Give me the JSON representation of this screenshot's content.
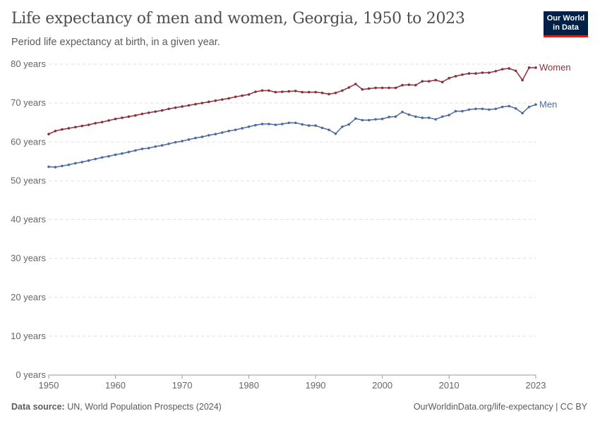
{
  "header": {
    "title": "Life expectancy of men and women, Georgia, 1950 to 2023",
    "subtitle": "Period life expectancy at birth, in a given year.",
    "logo": "Our World in Data"
  },
  "footer": {
    "source_label": "Data source:",
    "source": "UN, World Population Prospects (2024)",
    "link": "OurWorldinData.org/life-expectancy | CC BY"
  },
  "chart_data": {
    "type": "line",
    "title": "Life expectancy of men and women, Georgia, 1950 to 2023",
    "xlim": [
      1950,
      2023
    ],
    "ylim": [
      0,
      80
    ],
    "grid": "horizontal dashed",
    "legend": "inline-right",
    "x_ticks": [
      "1950",
      "1960",
      "1970",
      "1980",
      "1990",
      "2000",
      "2010",
      "2023"
    ],
    "y_ticks": [
      "0 years",
      "10 years",
      "20 years",
      "30 years",
      "40 years",
      "50 years",
      "60 years",
      "70 years",
      "80 years"
    ],
    "x_start": 1950,
    "series": [
      {
        "name": "Women",
        "color": "#883039",
        "values": [
          62.0,
          62.8,
          63.2,
          63.5,
          63.8,
          64.1,
          64.4,
          64.8,
          65.1,
          65.5,
          65.9,
          66.2,
          66.5,
          66.8,
          67.2,
          67.5,
          67.8,
          68.1,
          68.5,
          68.8,
          69.1,
          69.4,
          69.7,
          70.0,
          70.3,
          70.6,
          70.9,
          71.2,
          71.6,
          71.9,
          72.2,
          72.9,
          73.2,
          73.2,
          72.8,
          72.9,
          73.0,
          73.1,
          72.8,
          72.8,
          72.8,
          72.6,
          72.3,
          72.6,
          73.2,
          74.0,
          74.9,
          73.5,
          73.7,
          73.9,
          73.9,
          73.9,
          73.9,
          74.6,
          74.7,
          74.6,
          75.6,
          75.6,
          75.9,
          75.4,
          76.4,
          76.9,
          77.3,
          77.6,
          77.6,
          77.8,
          77.8,
          78.2,
          78.7,
          78.9,
          78.3,
          75.9,
          79.1,
          79.1
        ]
      },
      {
        "name": "Men",
        "color": "#4C6A9C",
        "values": [
          53.6,
          53.5,
          53.8,
          54.1,
          54.5,
          54.8,
          55.2,
          55.6,
          56.0,
          56.3,
          56.7,
          57.0,
          57.4,
          57.8,
          58.2,
          58.4,
          58.8,
          59.1,
          59.5,
          59.9,
          60.2,
          60.6,
          61.0,
          61.3,
          61.7,
          62.0,
          62.4,
          62.8,
          63.1,
          63.5,
          63.9,
          64.3,
          64.6,
          64.6,
          64.4,
          64.6,
          64.9,
          64.9,
          64.5,
          64.2,
          64.2,
          63.6,
          63.1,
          62.1,
          63.9,
          64.5,
          66.0,
          65.6,
          65.6,
          65.8,
          65.9,
          66.4,
          66.5,
          67.7,
          67.0,
          66.5,
          66.2,
          66.2,
          65.8,
          66.5,
          66.9,
          67.9,
          67.9,
          68.3,
          68.5,
          68.5,
          68.3,
          68.5,
          69.0,
          69.2,
          68.6,
          67.4,
          69.0,
          69.6
        ]
      }
    ]
  }
}
